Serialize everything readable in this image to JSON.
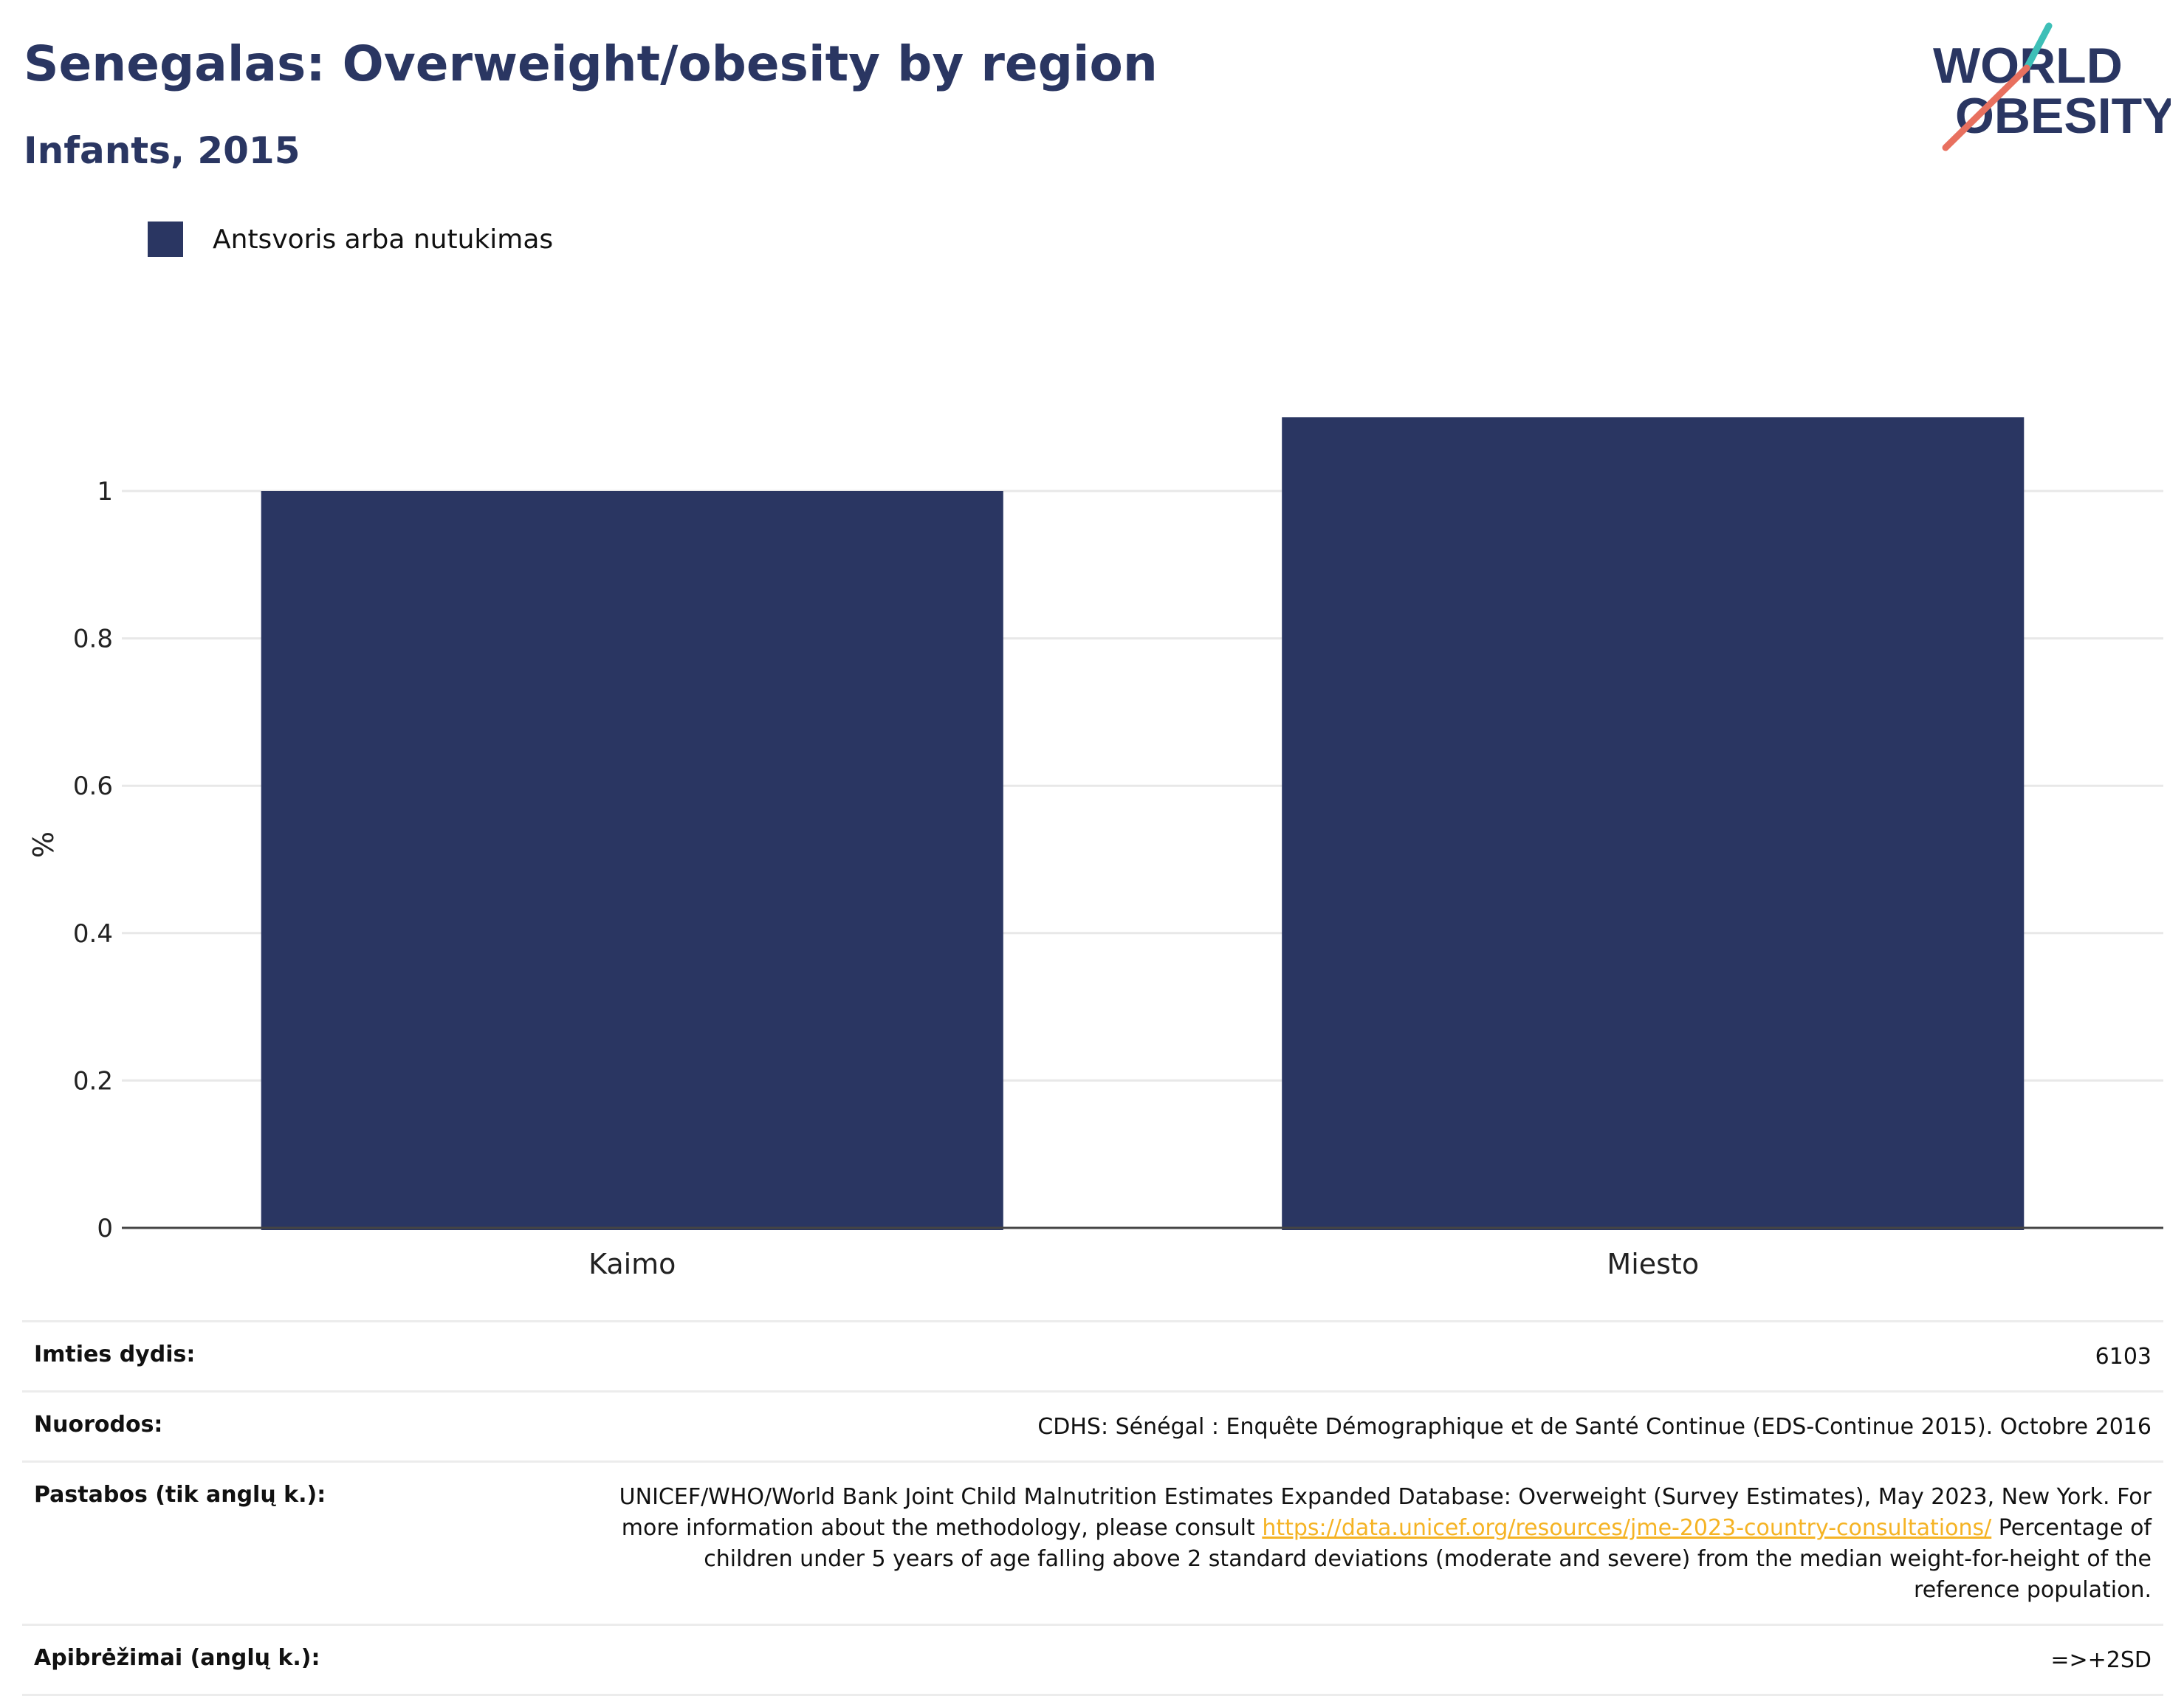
{
  "header": {
    "title": "Senegalas: Overweight/obesity by region",
    "subtitle": "Infants, 2015",
    "logo_line1": "WORLD",
    "logo_line2": "OBESITY"
  },
  "legend": {
    "label": "Antsvoris arba nutukimas"
  },
  "colors": {
    "bar": "#2a3662",
    "title": "#2a3662",
    "link": "#f5b324",
    "logo_teal": "#3dbfb7",
    "logo_coral": "#e8705f"
  },
  "chart_data": {
    "type": "bar",
    "categories": [
      "Kaimo",
      "Miesto"
    ],
    "series": [
      {
        "name": "Antsvoris arba nutukimas",
        "values": [
          1.0,
          1.1
        ]
      }
    ],
    "ylabel": "%",
    "xlabel": "",
    "ylim": [
      0,
      1.1
    ],
    "yticks": [
      0,
      0.2,
      0.4,
      0.6,
      0.8,
      1
    ],
    "ytick_labels": [
      "0",
      "0.2",
      "0.4",
      "0.6",
      "0.8",
      "1"
    ],
    "grid": true,
    "legend_position": "top-left"
  },
  "info": {
    "sample_label": "Imties dydis:",
    "sample_value": "6103",
    "refs_label": "Nuorodos:",
    "refs_value": "CDHS: Sénégal : Enquête Démographique et de Santé Continue (EDS-Continue 2015). Octobre 2016",
    "notes_label": "Pastabos (tik anglų k.):",
    "notes_text1": "UNICEF/WHO/World Bank Joint Child Malnutrition Estimates Expanded Database: Overweight (Survey Estimates), May 2023, New York. For more information about the methodology, please consult ",
    "notes_link": "https://data.unicef.org/resources/jme-2023-country-consultations/",
    "notes_text2": " Percentage of children under 5 years of age falling above 2 standard deviations (moderate and severe) from the median weight-for-height of the reference population.",
    "defs_label": "Apibrėžimai (anglų k.):",
    "defs_value": "=>+2SD"
  }
}
